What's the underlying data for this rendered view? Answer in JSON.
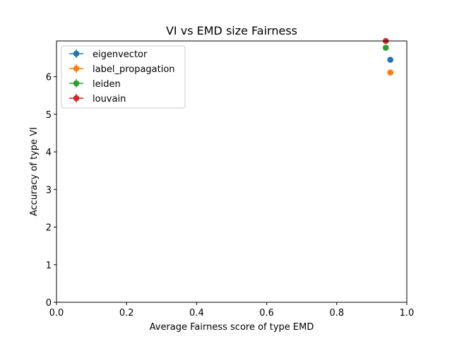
{
  "chart_data": {
    "type": "scatter",
    "title": "VI vs EMD size Fairness",
    "xlabel": "Average Fairness score of type EMD",
    "ylabel": "Accuracy of type VI",
    "xlim": [
      0.0,
      1.0
    ],
    "ylim": [
      0,
      6.95
    ],
    "xticks": [
      "0.0",
      "0.2",
      "0.4",
      "0.6",
      "0.8",
      "1.0"
    ],
    "yticks": [
      "0",
      "1",
      "2",
      "3",
      "4",
      "5",
      "6"
    ],
    "grid": false,
    "legend_position": "top-left",
    "series": [
      {
        "name": "eigenvector",
        "color": "#1f77b4",
        "points": [
          {
            "x": 0.953,
            "y": 6.45
          }
        ]
      },
      {
        "name": "label_propagation",
        "color": "#ff7f0e",
        "points": [
          {
            "x": 0.953,
            "y": 6.11
          }
        ]
      },
      {
        "name": "leiden",
        "color": "#2ca02c",
        "points": [
          {
            "x": 0.94,
            "y": 6.77
          }
        ]
      },
      {
        "name": "louvain",
        "color": "#d62728",
        "points": [
          {
            "x": 0.94,
            "y": 6.95
          }
        ]
      }
    ]
  }
}
